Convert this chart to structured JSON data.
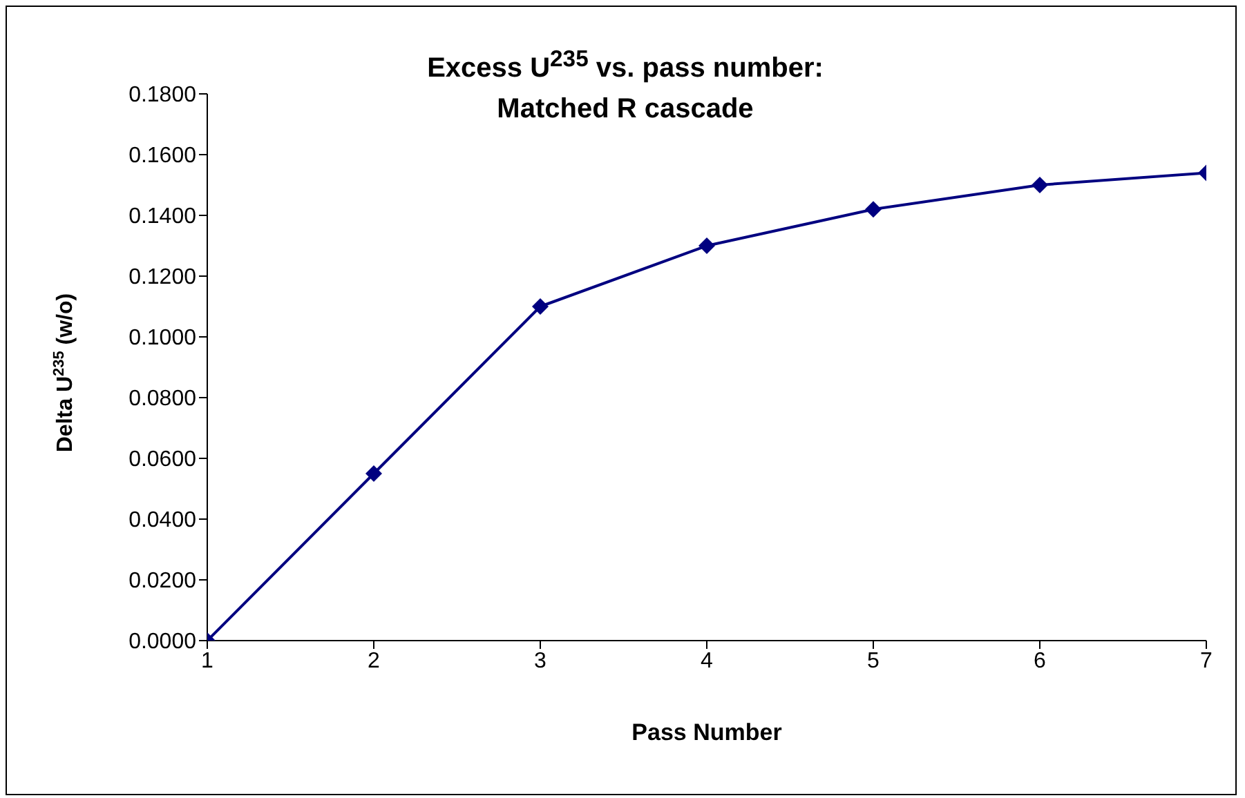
{
  "chart_data": {
    "type": "line",
    "title": "Excess U$^{235}$ vs. pass number: Matched R cascade",
    "xlabel": "Pass Number",
    "ylabel": "Delta U$^{235}$ (w/o)",
    "x": [
      1,
      2,
      3,
      4,
      5,
      6,
      7
    ],
    "series": [
      {
        "color": "#000080",
        "values": [
          0,
          0.055,
          0.11,
          0.13,
          0.142,
          0.15,
          0.154
        ]
      }
    ],
    "xlim": [
      1,
      7
    ],
    "xticks": [
      1,
      2,
      3,
      4,
      5,
      6,
      7
    ],
    "ylim": [
      0,
      0.18
    ],
    "yticks": [
      {
        "value": 0,
        "label": "0.0000"
      },
      {
        "value": 0.02,
        "label": "0.0200"
      },
      {
        "value": 0.04,
        "label": "0.0400"
      },
      {
        "value": 0.06,
        "label": "0.0600"
      },
      {
        "value": 0.08,
        "label": "0.0800"
      },
      {
        "value": 0.1,
        "label": "0.1000"
      },
      {
        "value": 0.12,
        "label": "0.1200"
      },
      {
        "value": 0.14,
        "label": "0.1400"
      },
      {
        "value": 0.16,
        "label": "0.1600"
      },
      {
        "value": 0.18,
        "label": "0.1800"
      }
    ],
    "grid": false,
    "legend": false,
    "marker": "diamond",
    "line_style": "solid"
  }
}
